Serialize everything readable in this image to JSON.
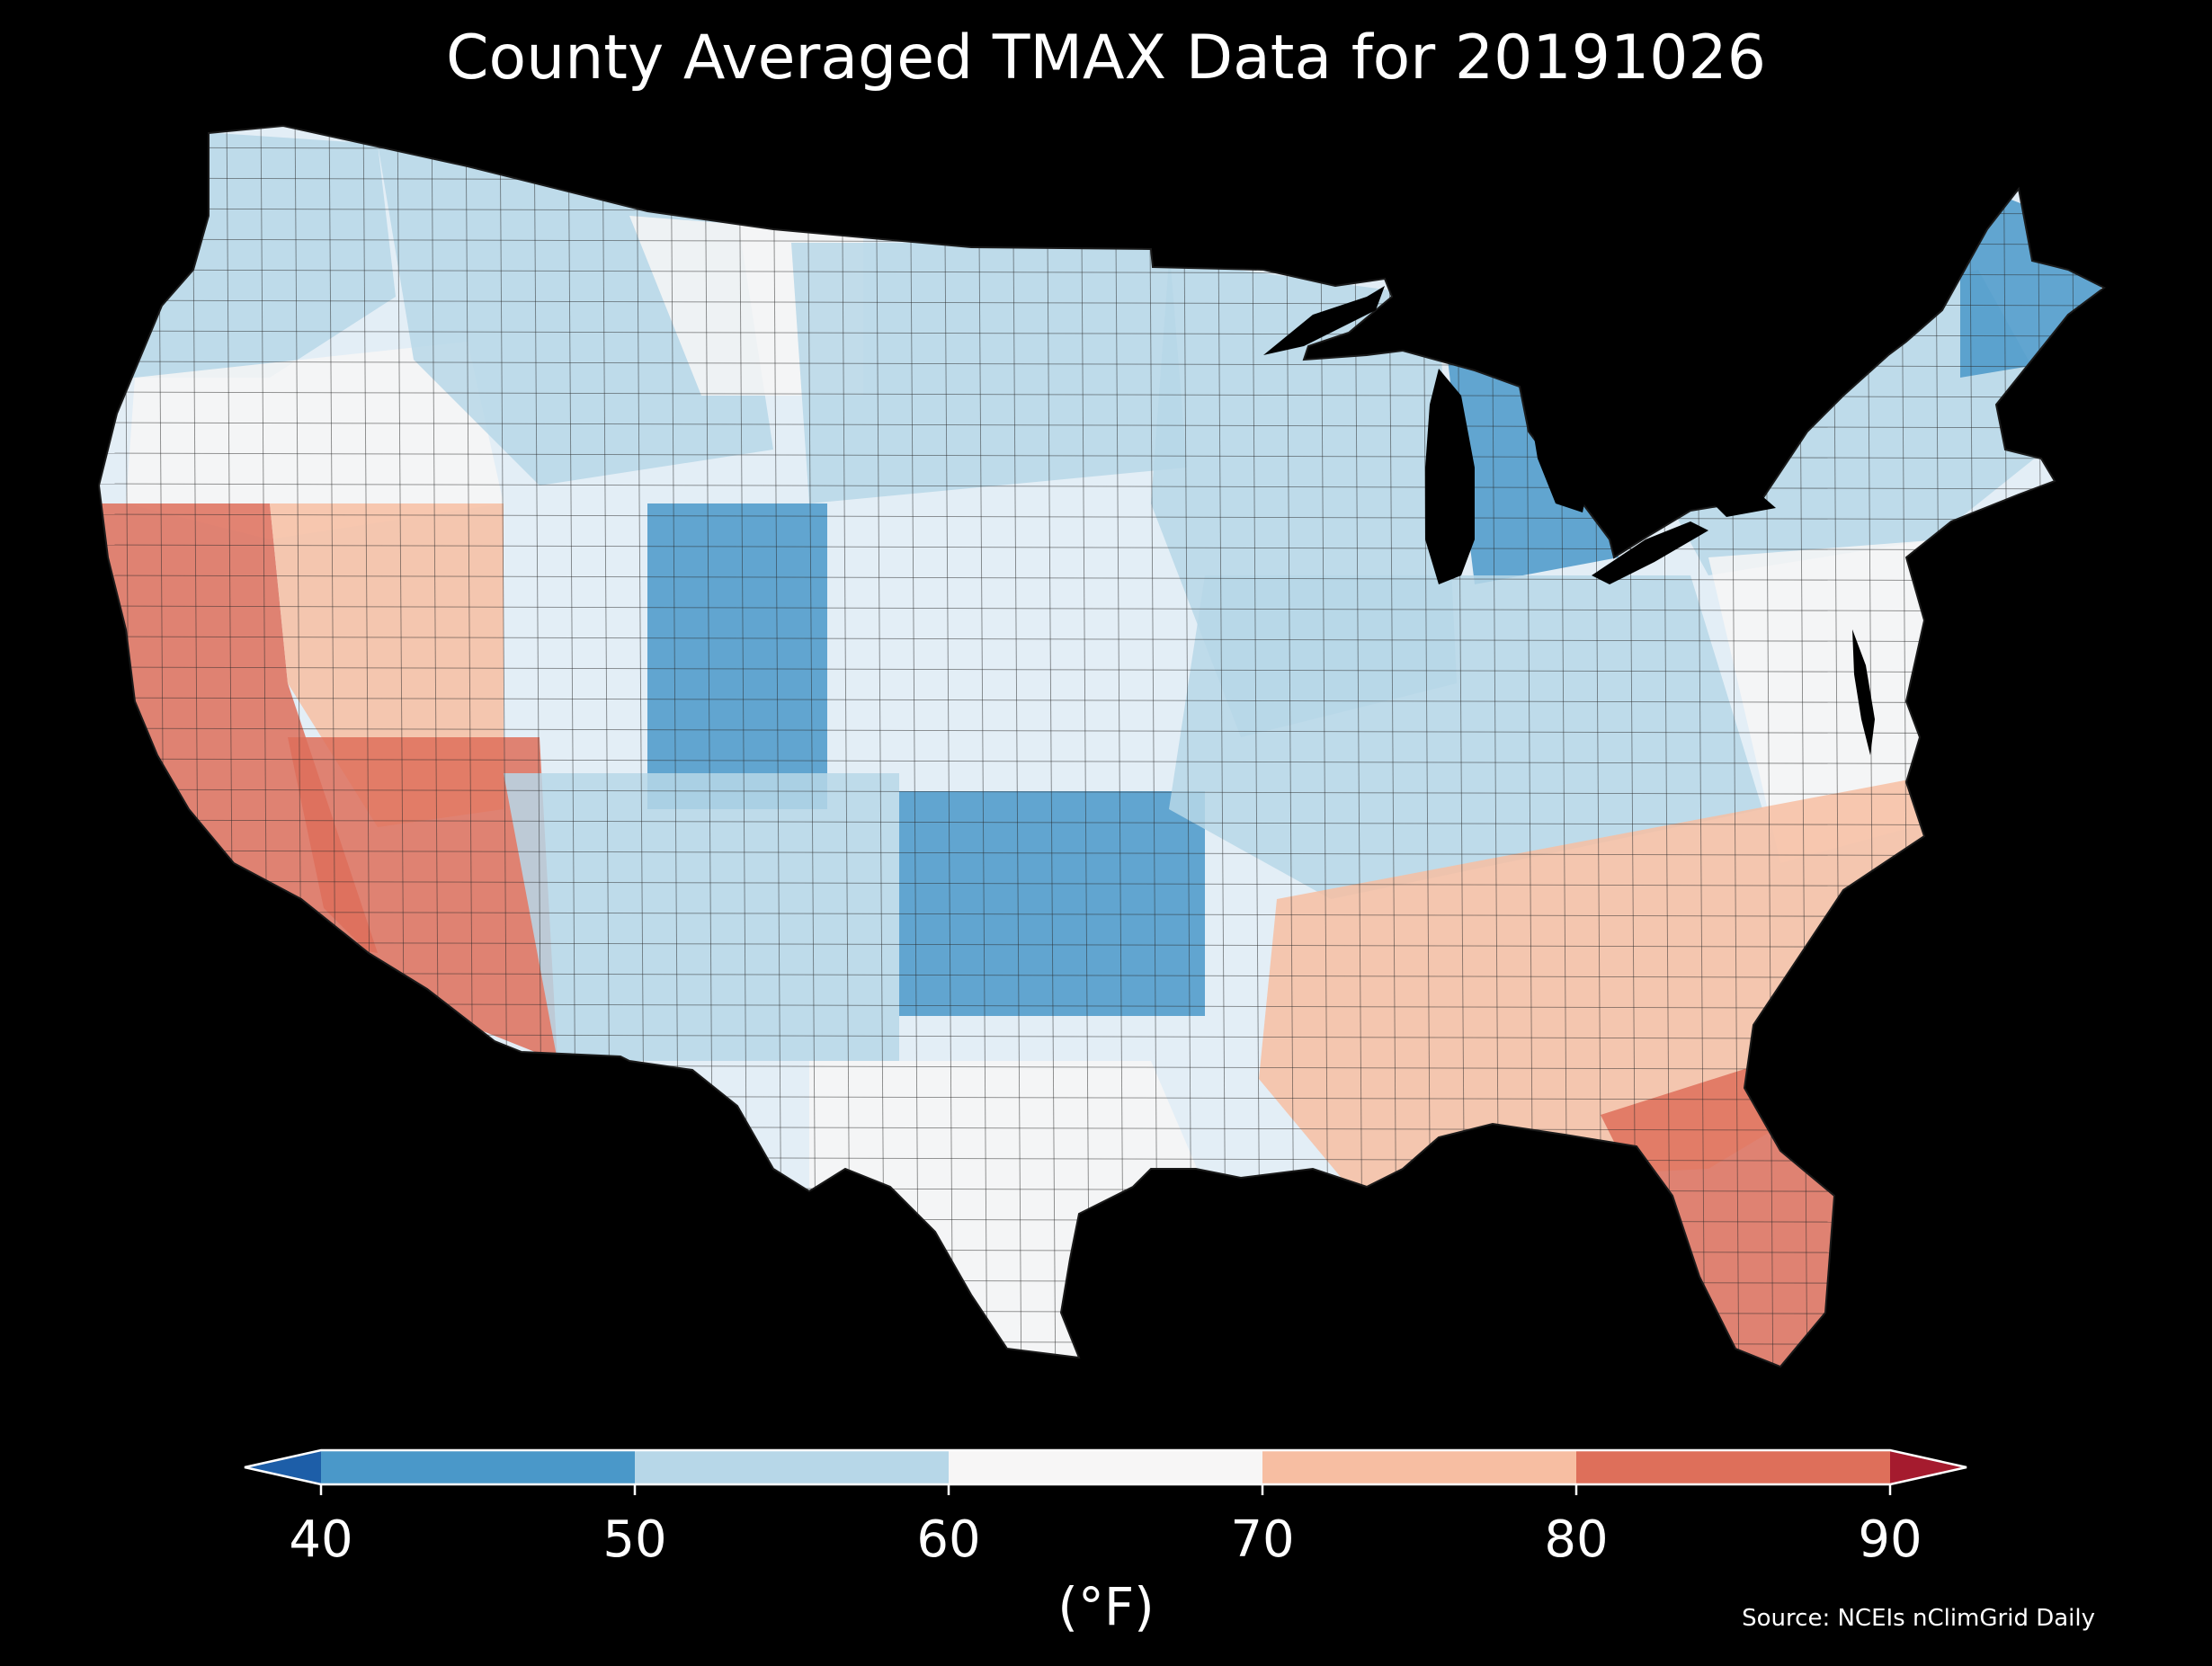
{
  "title": "County Averaged TMAX Data for 20191026",
  "colorbar": {
    "unit_label": "(°F)",
    "ticks": [
      "40",
      "50",
      "60",
      "70",
      "80",
      "90"
    ],
    "bins": [
      {
        "from": 40,
        "to": 50,
        "color": "#4a98c9"
      },
      {
        "from": 50,
        "to": 60,
        "color": "#b7d7e8"
      },
      {
        "from": 60,
        "to": 70,
        "color": "#f7f6f6"
      },
      {
        "from": 70,
        "to": 80,
        "color": "#f7bea2"
      },
      {
        "from": 80,
        "to": 90,
        "color": "#de6f5a"
      }
    ],
    "under_color": "#1d5ea8",
    "over_color": "#a51b2e",
    "extend": "both"
  },
  "source": "Source: NCEIs nClimGrid Daily",
  "map_colors": {
    "background": "#000000",
    "county_border": "#2a2a2a"
  },
  "regions": [
    {
      "name": "pacific-northwest",
      "value": 57
    },
    {
      "name": "oregon-interior",
      "value": 66
    },
    {
      "name": "northern-rockies",
      "value": 53
    },
    {
      "name": "montana-east",
      "value": 68
    },
    {
      "name": "northern-plains",
      "value": 56
    },
    {
      "name": "upper-midwest",
      "value": 50
    },
    {
      "name": "michigan",
      "value": 47
    },
    {
      "name": "northeast",
      "value": 52
    },
    {
      "name": "maine",
      "value": 48
    },
    {
      "name": "california-coast",
      "value": 84
    },
    {
      "name": "great-basin",
      "value": 70
    },
    {
      "name": "desert-southwest",
      "value": 80
    },
    {
      "name": "colorado-rockies",
      "value": 47
    },
    {
      "name": "southern-plains",
      "value": 45
    },
    {
      "name": "ohio-valley",
      "value": 58
    },
    {
      "name": "mid-atlantic",
      "value": 62
    },
    {
      "name": "southeast",
      "value": 76
    },
    {
      "name": "florida",
      "value": 84
    },
    {
      "name": "texas-south",
      "value": 66
    },
    {
      "name": "new-mexico",
      "value": 58
    }
  ]
}
